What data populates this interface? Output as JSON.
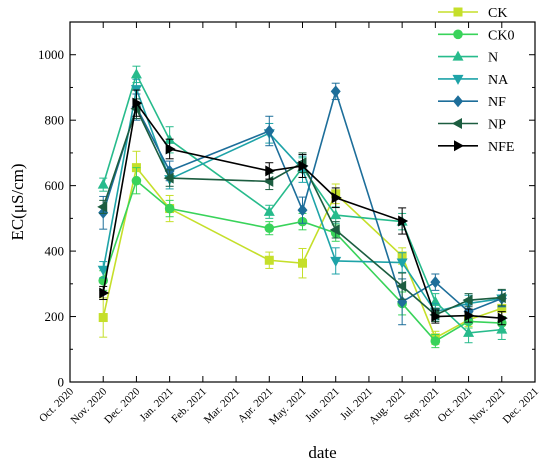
{
  "chart_data": {
    "type": "line",
    "xlabel": "date",
    "ylabel": "EC(μS/cm)",
    "ylim": [
      0,
      1100
    ],
    "yticks": [
      0,
      200,
      400,
      600,
      800,
      1000
    ],
    "x_ticks": [
      "Oct. 2020",
      "Nov. 2020",
      "Dec. 2020",
      "Jan. 2021",
      "Feb. 2021",
      "Mar. 2021",
      "Apr. 2021",
      "May. 2021",
      "Jun. 2021",
      "Jul. 2021",
      "Aug. 2021",
      "Sep. 2021",
      "Oct. 2021",
      "Nov. 2021",
      "Dec. 2021"
    ],
    "x": [
      "Nov. 2020",
      "Dec. 2020",
      "Jan. 2021",
      "Apr. 2021",
      "May. 2021",
      "Jun. 2021",
      "Aug. 2021",
      "Sep. 2021",
      "Oct. 2021",
      "Nov. 2021"
    ],
    "grid": false,
    "legend_position": "top-right",
    "series": [
      {
        "name": "CK",
        "color": "#c5df2a",
        "marker": "square",
        "values": [
          197,
          655,
          530,
          372,
          363,
          575,
          385,
          135,
          190,
          225
        ],
        "errors": [
          60,
          50,
          40,
          25,
          45,
          30,
          25,
          20,
          20,
          25
        ]
      },
      {
        "name": "CK0",
        "color": "#39d35a",
        "marker": "circle",
        "values": [
          310,
          615,
          530,
          470,
          490,
          455,
          240,
          125,
          185,
          180
        ],
        "errors": [
          30,
          40,
          25,
          20,
          25,
          25,
          35,
          20,
          20,
          20
        ]
      },
      {
        "name": "N",
        "color": "#27bb8c",
        "marker": "triangle-up",
        "values": [
          603,
          940,
          740,
          520,
          655,
          510,
          490,
          245,
          150,
          160
        ],
        "errors": [
          20,
          25,
          40,
          20,
          30,
          25,
          25,
          25,
          30,
          30
        ]
      },
      {
        "name": "NA",
        "color": "#1ea3a8",
        "marker": "triangle-down",
        "values": [
          343,
          895,
          620,
          760,
          650,
          370,
          365,
          215,
          240,
          255
        ],
        "errors": [
          25,
          30,
          30,
          30,
          40,
          40,
          30,
          25,
          25,
          25
        ]
      },
      {
        "name": "NF",
        "color": "#1d6e9a",
        "marker": "diamond",
        "values": [
          517,
          840,
          645,
          767,
          525,
          888,
          245,
          305,
          215,
          255
        ],
        "errors": [
          50,
          40,
          30,
          45,
          40,
          25,
          70,
          25,
          20,
          25
        ]
      },
      {
        "name": "NP",
        "color": "#1c5d40",
        "marker": "tri-left",
        "values": [
          535,
          835,
          623,
          613,
          670,
          465,
          293,
          205,
          250,
          258
        ],
        "errors": [
          20,
          30,
          25,
          25,
          30,
          25,
          40,
          20,
          20,
          25
        ]
      },
      {
        "name": "NFE",
        "color": "#000000",
        "marker": "tri-right",
        "values": [
          272,
          852,
          712,
          645,
          660,
          563,
          492,
          200,
          203,
          195
        ],
        "errors": [
          20,
          40,
          30,
          25,
          35,
          30,
          40,
          20,
          20,
          20
        ]
      }
    ]
  }
}
